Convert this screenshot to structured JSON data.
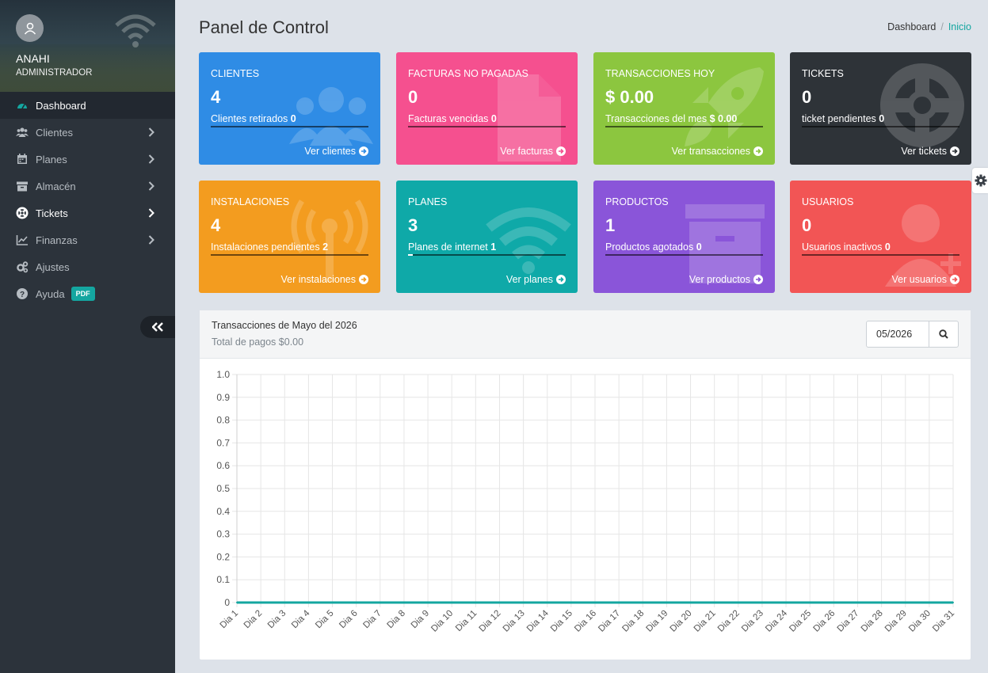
{
  "sidebar": {
    "user_name": "ANAHI",
    "user_role": "ADMINISTRADOR",
    "items": [
      {
        "label": "Dashboard",
        "icon": "dashboard-icon",
        "active": true,
        "chevron": false
      },
      {
        "label": "Clientes",
        "icon": "users-icon",
        "active": false,
        "chevron": true
      },
      {
        "label": "Planes",
        "icon": "calendar-icon",
        "active": false,
        "chevron": true
      },
      {
        "label": "Almacén",
        "icon": "archive-icon",
        "active": false,
        "chevron": true
      },
      {
        "label": "Tickets",
        "icon": "lifebuoy-icon",
        "active": false,
        "chevron": true
      },
      {
        "label": "Finanzas",
        "icon": "chart-line-icon",
        "active": false,
        "chevron": true
      },
      {
        "label": "Ajustes",
        "icon": "gears-icon",
        "active": false,
        "chevron": false
      },
      {
        "label": "Ayuda",
        "icon": "question-icon",
        "active": false,
        "chevron": false,
        "badge": "PDF"
      }
    ]
  },
  "header": {
    "title": "Panel de Control",
    "breadcrumb": [
      "Dashboard",
      "Inicio"
    ]
  },
  "cards": [
    {
      "title": "CLIENTES",
      "value": "4",
      "sub_label": "Clientes retirados",
      "sub_value": "0",
      "link": "Ver clientes",
      "color": "#2f8ce5",
      "icon": "users-icon",
      "bar_fill": 0
    },
    {
      "title": "FACTURAS NO PAGADAS",
      "value": "0",
      "sub_label": "Facturas vencidas",
      "sub_value": "0",
      "link": "Ver facturas",
      "color": "#f5508f",
      "icon": "file-icon",
      "bar_fill": 0
    },
    {
      "title": "TRANSACCIONES HOY",
      "value": "$ 0.00",
      "sub_label": "Transacciones del mes",
      "sub_value": "$ 0.00",
      "link": "Ver transacciones",
      "color": "#8cc63f",
      "icon": "rocket-icon",
      "bar_fill": 0
    },
    {
      "title": "TICKETS",
      "value": "0",
      "sub_label": "ticket pendientes",
      "sub_value": "0",
      "link": "Ver tickets",
      "color": "#2e3338",
      "icon": "lifebuoy-icon",
      "bar_fill": 0
    },
    {
      "title": "INSTALACIONES",
      "value": "4",
      "sub_label": "Instalaciones pendientes",
      "sub_value": "2",
      "link": "Ver instalaciones",
      "color": "#f39c1f",
      "icon": "antenna-icon",
      "bar_fill": 0
    },
    {
      "title": "PLANES",
      "value": "3",
      "sub_label": "Planes de internet",
      "sub_value": "1",
      "link": "Ver planes",
      "color": "#0fa9a8",
      "icon": "wifi-icon",
      "bar_fill": 0.03
    },
    {
      "title": "PRODUCTOS",
      "value": "1",
      "sub_label": "Productos agotados",
      "sub_value": "0",
      "link": "Ver productos",
      "color": "#8a55d9",
      "icon": "archive-icon",
      "bar_fill": 0
    },
    {
      "title": "USUARIOS",
      "value": "0",
      "sub_label": "Usuarios inactivos",
      "sub_value": "0",
      "link": "Ver usuarios",
      "color": "#f25555",
      "icon": "user-plus-icon",
      "bar_fill": 0
    }
  ],
  "chart_panel": {
    "title": "Transacciones de Mayo del 2026",
    "subtitle": "Total de pagos $0.00",
    "date_value": "05/2026"
  },
  "chart_data": {
    "type": "line",
    "categories": [
      "Dia 1",
      "Dia 2",
      "Dia 3",
      "Dia 4",
      "Dia 5",
      "Dia 6",
      "Dia 7",
      "Dia 8",
      "Dia 9",
      "Dia 10",
      "Dia 11",
      "Dia 12",
      "Dia 13",
      "Dia 14",
      "Dia 15",
      "Dia 16",
      "Dia 17",
      "Dia 18",
      "Dia 19",
      "Dia 20",
      "Dia 21",
      "Dia 22",
      "Dia 23",
      "Dia 24",
      "Dia 25",
      "Dia 26",
      "Dia 27",
      "Dia 28",
      "Dia 29",
      "Dia 30",
      "Dia 31"
    ],
    "series": [
      {
        "values": [
          0,
          0,
          0,
          0,
          0,
          0,
          0,
          0,
          0,
          0,
          0,
          0,
          0,
          0,
          0,
          0,
          0,
          0,
          0,
          0,
          0,
          0,
          0,
          0,
          0,
          0,
          0,
          0,
          0,
          0,
          0
        ],
        "color": "#14a6a0"
      }
    ],
    "yticks": [
      "0",
      "0.1",
      "0.2",
      "0.3",
      "0.4",
      "0.5",
      "0.6",
      "0.7",
      "0.8",
      "0.9",
      "1.0"
    ],
    "ylim": [
      0,
      1
    ],
    "grid": true
  }
}
